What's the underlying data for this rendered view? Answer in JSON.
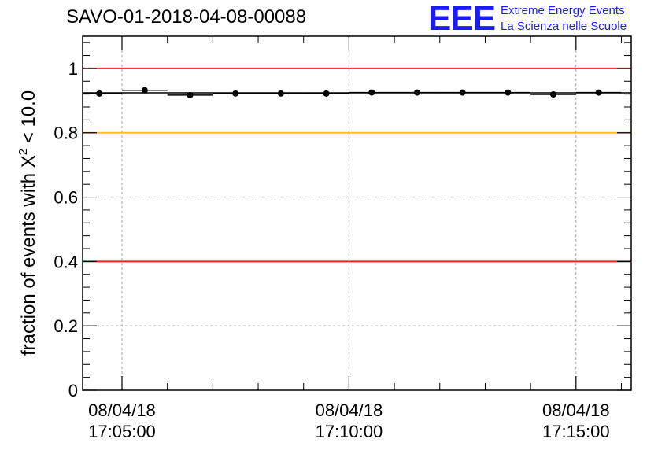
{
  "header": {
    "title": "SAVO-01-2018-04-08-00088"
  },
  "logo": {
    "mark": "EEE",
    "line1": "Extreme Energy Events",
    "line2": "La Scienza nelle Scuole",
    "color": "#1a1aff"
  },
  "chart_data": {
    "type": "scatter",
    "title": "SAVO-01-2018-04-08-00088",
    "ylabel_prefix": "fraction of events with ",
    "ylabel_symbol": "X",
    "ylabel_exponent": "2",
    "ylabel_suffix": " < 10.0",
    "ylim": [
      0,
      1.1
    ],
    "yticks": [
      0,
      0.2,
      0.4,
      0.6,
      0.8,
      1
    ],
    "ytick_labels": [
      "0",
      "0.2",
      "0.4",
      "0.6",
      "0.8",
      "1"
    ],
    "xlim": [
      "08/04/18 17:04:08",
      "08/04/18 17:16:13"
    ],
    "xticks": [
      {
        "x": "08/04/18 17:05:00",
        "date": "08/04/18",
        "time": "17:05:00"
      },
      {
        "x": "08/04/18 17:10:00",
        "date": "08/04/18",
        "time": "17:10:00"
      },
      {
        "x": "08/04/18 17:15:00",
        "date": "08/04/18",
        "time": "17:15:00"
      }
    ],
    "grid": true,
    "bin_width_seconds": 60,
    "points": [
      {
        "x": "08/04/18 17:04:30",
        "y": 0.922
      },
      {
        "x": "08/04/18 17:05:30",
        "y": 0.932
      },
      {
        "x": "08/04/18 17:06:30",
        "y": 0.917
      },
      {
        "x": "08/04/18 17:07:30",
        "y": 0.922
      },
      {
        "x": "08/04/18 17:08:30",
        "y": 0.922
      },
      {
        "x": "08/04/18 17:09:30",
        "y": 0.922
      },
      {
        "x": "08/04/18 17:10:30",
        "y": 0.925
      },
      {
        "x": "08/04/18 17:11:30",
        "y": 0.925
      },
      {
        "x": "08/04/18 17:12:30",
        "y": 0.925
      },
      {
        "x": "08/04/18 17:13:30",
        "y": 0.925
      },
      {
        "x": "08/04/18 17:14:30",
        "y": 0.919
      },
      {
        "x": "08/04/18 17:15:30",
        "y": 0.925
      }
    ],
    "mean_line": 0.924,
    "reference_lines": [
      {
        "y": 1.0,
        "color": "#e8261e"
      },
      {
        "y": 0.8,
        "color": "#ffc20e"
      },
      {
        "y": 0.4,
        "color": "#e8261e"
      }
    ]
  }
}
